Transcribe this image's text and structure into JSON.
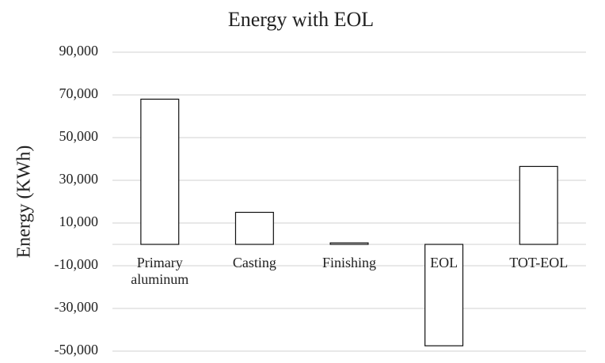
{
  "chart_data": {
    "type": "bar",
    "title": "Energy with EOL",
    "y_label": "Energy (KWh)",
    "categories": [
      "Primary aluminum",
      "Casting",
      "Finishing",
      "EOL",
      "TOT-EOL"
    ],
    "values": [
      68000,
      15000,
      700,
      -47500,
      36500
    ],
    "color": "#ffffff",
    "ylim": [
      -50000,
      90000
    ],
    "yticks": [
      {
        "value": -50000,
        "label": "-50,000"
      },
      {
        "value": -30000,
        "label": "-30,000"
      },
      {
        "value": -10000,
        "label": "-10,000"
      },
      {
        "value": 10000,
        "label": "10,000"
      },
      {
        "value": 30000,
        "label": "30,000"
      },
      {
        "value": 50000,
        "label": "50,000"
      },
      {
        "value": 70000,
        "label": "70,000"
      },
      {
        "value": 90000,
        "label": "90,000"
      }
    ],
    "grid": true
  }
}
